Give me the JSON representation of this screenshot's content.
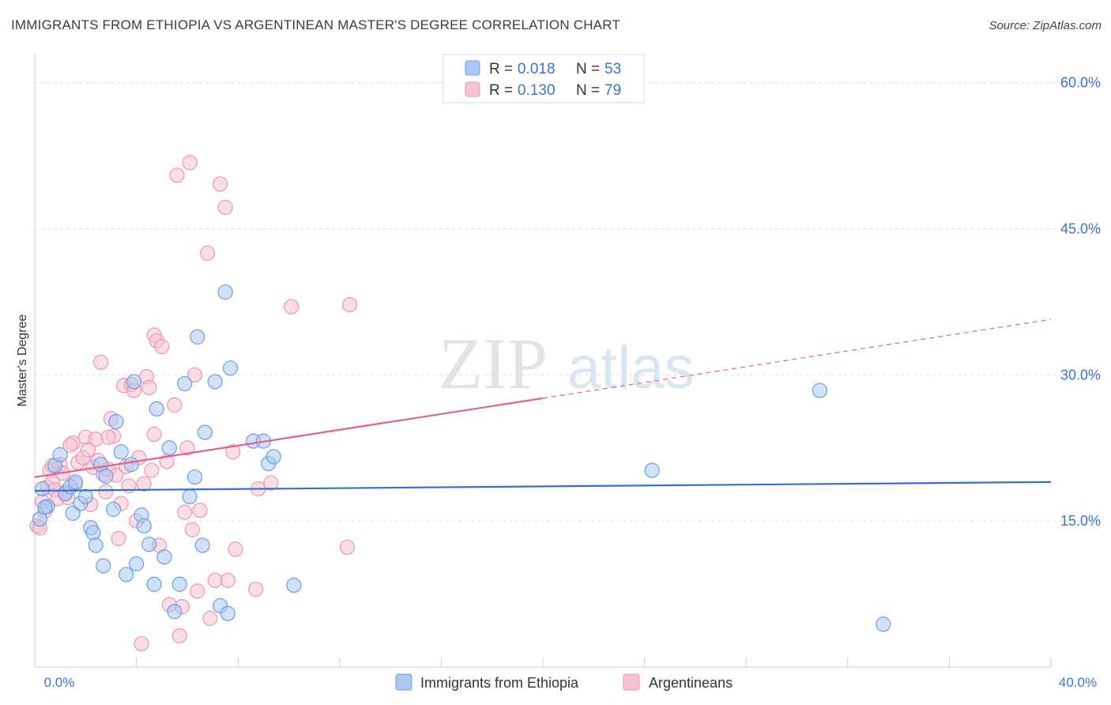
{
  "chart_data": {
    "type": "scatter",
    "title": "IMMIGRANTS FROM ETHIOPIA VS ARGENTINEAN MASTER'S DEGREE CORRELATION CHART",
    "source": "Source: ZipAtlas.com",
    "ylabel": "Master's Degree",
    "xlabel": "",
    "xlim": [
      0,
      40
    ],
    "ylim": [
      0,
      62
    ],
    "x_tick_labels": [
      "0.0%",
      "40.0%"
    ],
    "y_ticks": [
      15,
      30,
      45,
      60
    ],
    "y_tick_labels": [
      "15.0%",
      "30.0%",
      "45.0%",
      "60.0%"
    ],
    "watermark": {
      "zip": "ZIP",
      "atlas": "atlas"
    },
    "legend_top": [
      {
        "r_label": "R = ",
        "r_value": "0.018",
        "n_label": "N = ",
        "n_value": "53"
      },
      {
        "r_label": "R = ",
        "r_value": "0.130",
        "n_label": "N = ",
        "n_value": "79"
      }
    ],
    "series": [
      {
        "name": "Immigrants from Ethiopia",
        "color": "#6b9de8",
        "fill": "#aac8f2",
        "line_color": "#3070d0",
        "trend": {
          "x0": 0,
          "y0": 18.1,
          "x1": 40,
          "y1": 19.0
        },
        "points": [
          [
            0.3,
            18.3
          ],
          [
            0.5,
            16.5
          ],
          [
            0.8,
            20.7
          ],
          [
            1.0,
            21.8
          ],
          [
            1.2,
            17.8
          ],
          [
            1.4,
            18.5
          ],
          [
            1.5,
            15.8
          ],
          [
            1.6,
            19.0
          ],
          [
            1.8,
            16.8
          ],
          [
            2.0,
            17.5
          ],
          [
            2.2,
            14.3
          ],
          [
            2.3,
            13.8
          ],
          [
            2.4,
            12.5
          ],
          [
            2.6,
            20.8
          ],
          [
            2.7,
            10.4
          ],
          [
            2.8,
            19.6
          ],
          [
            3.1,
            16.2
          ],
          [
            3.2,
            25.2
          ],
          [
            3.4,
            22.1
          ],
          [
            3.6,
            9.5
          ],
          [
            3.8,
            20.8
          ],
          [
            3.9,
            29.3
          ],
          [
            4.0,
            10.6
          ],
          [
            4.2,
            15.6
          ],
          [
            4.3,
            14.5
          ],
          [
            4.5,
            12.6
          ],
          [
            4.7,
            8.5
          ],
          [
            4.8,
            26.5
          ],
          [
            5.1,
            11.3
          ],
          [
            5.3,
            22.5
          ],
          [
            5.5,
            5.7
          ],
          [
            5.7,
            8.5
          ],
          [
            5.9,
            29.1
          ],
          [
            6.1,
            17.5
          ],
          [
            6.3,
            19.5
          ],
          [
            6.4,
            33.9
          ],
          [
            6.6,
            12.5
          ],
          [
            6.7,
            24.1
          ],
          [
            7.1,
            29.3
          ],
          [
            7.3,
            6.3
          ],
          [
            7.5,
            38.5
          ],
          [
            7.6,
            5.5
          ],
          [
            7.7,
            30.7
          ],
          [
            8.6,
            23.2
          ],
          [
            9.0,
            23.2
          ],
          [
            9.2,
            20.9
          ],
          [
            9.4,
            21.6
          ],
          [
            10.2,
            8.4
          ],
          [
            24.3,
            20.2
          ],
          [
            30.9,
            28.4
          ],
          [
            33.4,
            4.4
          ],
          [
            0.2,
            15.2
          ],
          [
            0.4,
            16.4
          ]
        ]
      },
      {
        "name": "Argentineans",
        "color": "#ee93b1",
        "fill": "#f6c3d4",
        "line_color": "#e4608c",
        "trend": {
          "x0": 0,
          "y0": 19.5,
          "x1": 20,
          "y1": 27.6
        },
        "trend_ext": {
          "x0": 20,
          "y0": 27.6,
          "x1": 40,
          "y1": 35.7
        },
        "points": [
          [
            0.1,
            14.5
          ],
          [
            0.3,
            17.0
          ],
          [
            0.5,
            18.5
          ],
          [
            0.6,
            20.2
          ],
          [
            0.7,
            19.0
          ],
          [
            0.8,
            18.2
          ],
          [
            0.9,
            17.3
          ],
          [
            1.0,
            20.8
          ],
          [
            1.1,
            19.9
          ],
          [
            1.2,
            18.0
          ],
          [
            1.3,
            17.4
          ],
          [
            1.5,
            23.0
          ],
          [
            1.6,
            18.8
          ],
          [
            1.7,
            21.0
          ],
          [
            1.9,
            21.5
          ],
          [
            2.0,
            23.6
          ],
          [
            2.1,
            22.3
          ],
          [
            2.2,
            16.7
          ],
          [
            2.3,
            20.5
          ],
          [
            2.4,
            23.4
          ],
          [
            2.5,
            21.2
          ],
          [
            2.6,
            31.3
          ],
          [
            2.7,
            19.8
          ],
          [
            2.8,
            18.0
          ],
          [
            2.9,
            20.3
          ],
          [
            3.0,
            25.5
          ],
          [
            3.1,
            23.7
          ],
          [
            3.2,
            19.7
          ],
          [
            3.3,
            13.2
          ],
          [
            3.4,
            16.8
          ],
          [
            3.5,
            28.9
          ],
          [
            3.6,
            20.6
          ],
          [
            3.7,
            18.6
          ],
          [
            3.8,
            29.0
          ],
          [
            3.9,
            28.4
          ],
          [
            4.0,
            15.0
          ],
          [
            4.1,
            21.5
          ],
          [
            4.2,
            2.4
          ],
          [
            4.3,
            18.8
          ],
          [
            4.4,
            29.8
          ],
          [
            4.5,
            28.7
          ],
          [
            4.6,
            20.2
          ],
          [
            4.7,
            34.1
          ],
          [
            4.7,
            23.9
          ],
          [
            4.8,
            33.5
          ],
          [
            4.9,
            12.5
          ],
          [
            5.0,
            32.9
          ],
          [
            5.2,
            21.1
          ],
          [
            5.3,
            6.4
          ],
          [
            5.5,
            26.9
          ],
          [
            5.6,
            50.5
          ],
          [
            5.7,
            3.2
          ],
          [
            5.8,
            6.2
          ],
          [
            5.9,
            15.9
          ],
          [
            6.0,
            22.5
          ],
          [
            6.1,
            51.8
          ],
          [
            6.2,
            14.1
          ],
          [
            6.3,
            30.0
          ],
          [
            6.4,
            7.8
          ],
          [
            6.5,
            16.1
          ],
          [
            6.8,
            42.5
          ],
          [
            6.9,
            5.0
          ],
          [
            7.1,
            8.9
          ],
          [
            7.3,
            49.6
          ],
          [
            7.5,
            47.2
          ],
          [
            7.6,
            8.9
          ],
          [
            7.8,
            22.1
          ],
          [
            7.9,
            12.1
          ],
          [
            8.7,
            8.0
          ],
          [
            8.8,
            18.3
          ],
          [
            9.3,
            18.9
          ],
          [
            10.1,
            37.0
          ],
          [
            12.3,
            12.3
          ],
          [
            12.4,
            37.2
          ],
          [
            0.2,
            14.3
          ],
          [
            0.4,
            16.0
          ],
          [
            0.7,
            20.7
          ],
          [
            1.4,
            22.8
          ],
          [
            2.9,
            23.6
          ]
        ]
      }
    ]
  }
}
